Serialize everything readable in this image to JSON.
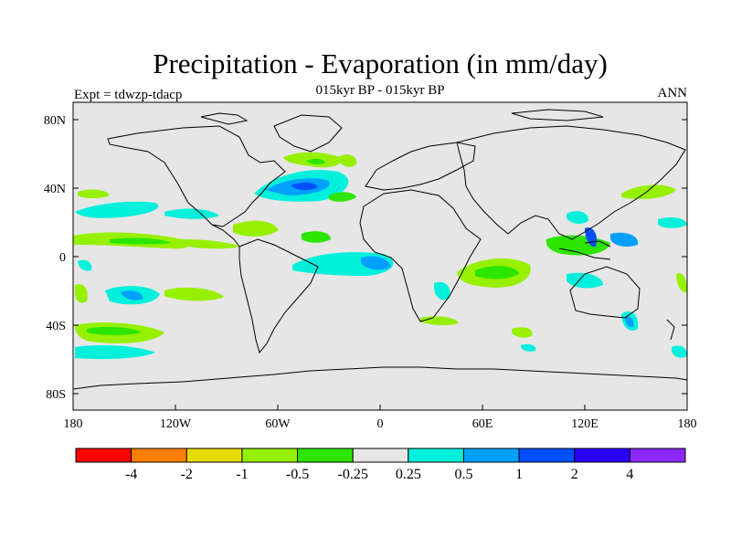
{
  "title": "Precipitation - Evaporation (in mm/day)",
  "subtitle": "015kyr BP - 015kyr BP",
  "left_label": "Expt = tdwzp-tdacp",
  "right_label": "ANN",
  "map": {
    "background_color": "#e6e6e6",
    "lat_ticks": [
      "80N",
      "40N",
      "0",
      "40S",
      "80S"
    ],
    "lon_ticks": [
      "180",
      "120W",
      "60W",
      "0",
      "60E",
      "120E",
      "180"
    ]
  },
  "colorbar": {
    "colors": [
      "#ff0000",
      "#ff8000",
      "#e6dc00",
      "#96f000",
      "#2ce600",
      "#e6e6e6",
      "#00f0dc",
      "#00a0ff",
      "#0050ff",
      "#2a00ff",
      "#8a28ff"
    ],
    "labels": [
      "-4",
      "-2",
      "-1",
      "-0.5",
      "-0.25",
      "0.25",
      "0.5",
      "1",
      "2",
      "4"
    ]
  }
}
